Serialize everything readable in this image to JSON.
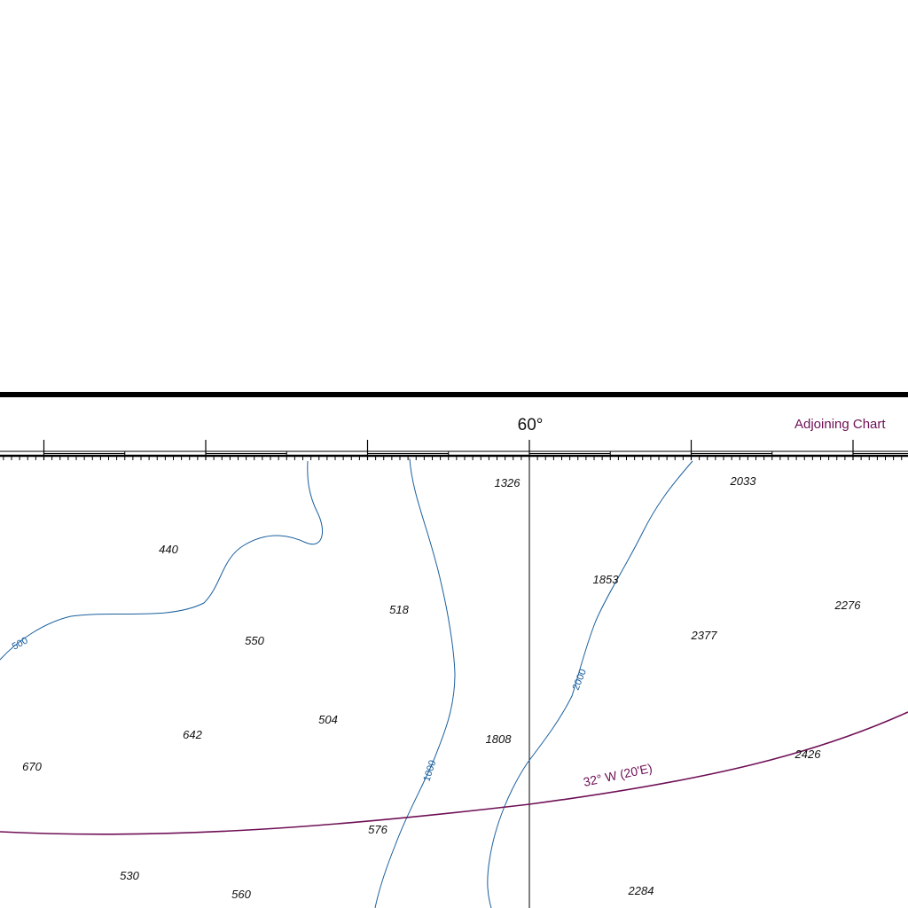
{
  "chart": {
    "latitude_label": "60°",
    "adjoining_chart_label": "Adjoining Chart",
    "colors": {
      "frame": "#000000",
      "contour": "#1a5f9e",
      "magenta": "#6e0f55",
      "text": "#111111"
    }
  },
  "soundings": [
    {
      "id": "s1",
      "text": "1326"
    },
    {
      "id": "s2",
      "text": "2033"
    },
    {
      "id": "s3",
      "text": "440"
    },
    {
      "id": "s4",
      "text": "1853"
    },
    {
      "id": "s5",
      "text": "518"
    },
    {
      "id": "s6",
      "text": "2276"
    },
    {
      "id": "s7",
      "text": "550"
    },
    {
      "id": "s8",
      "text": "2377"
    },
    {
      "id": "s9",
      "text": "504"
    },
    {
      "id": "s10",
      "text": "642"
    },
    {
      "id": "s11",
      "text": "1808"
    },
    {
      "id": "s12",
      "text": "670"
    },
    {
      "id": "s13",
      "text": "2426"
    },
    {
      "id": "s14",
      "text": "576"
    },
    {
      "id": "s15",
      "text": "530"
    },
    {
      "id": "s16",
      "text": "560"
    },
    {
      "id": "s17",
      "text": "2284"
    }
  ],
  "contours": [
    {
      "id": "c500",
      "label": "500"
    },
    {
      "id": "c1000",
      "label": "1000"
    },
    {
      "id": "c2000",
      "label": "2000"
    }
  ],
  "magnetic_variation": {
    "label": "32° W (20'E)"
  }
}
